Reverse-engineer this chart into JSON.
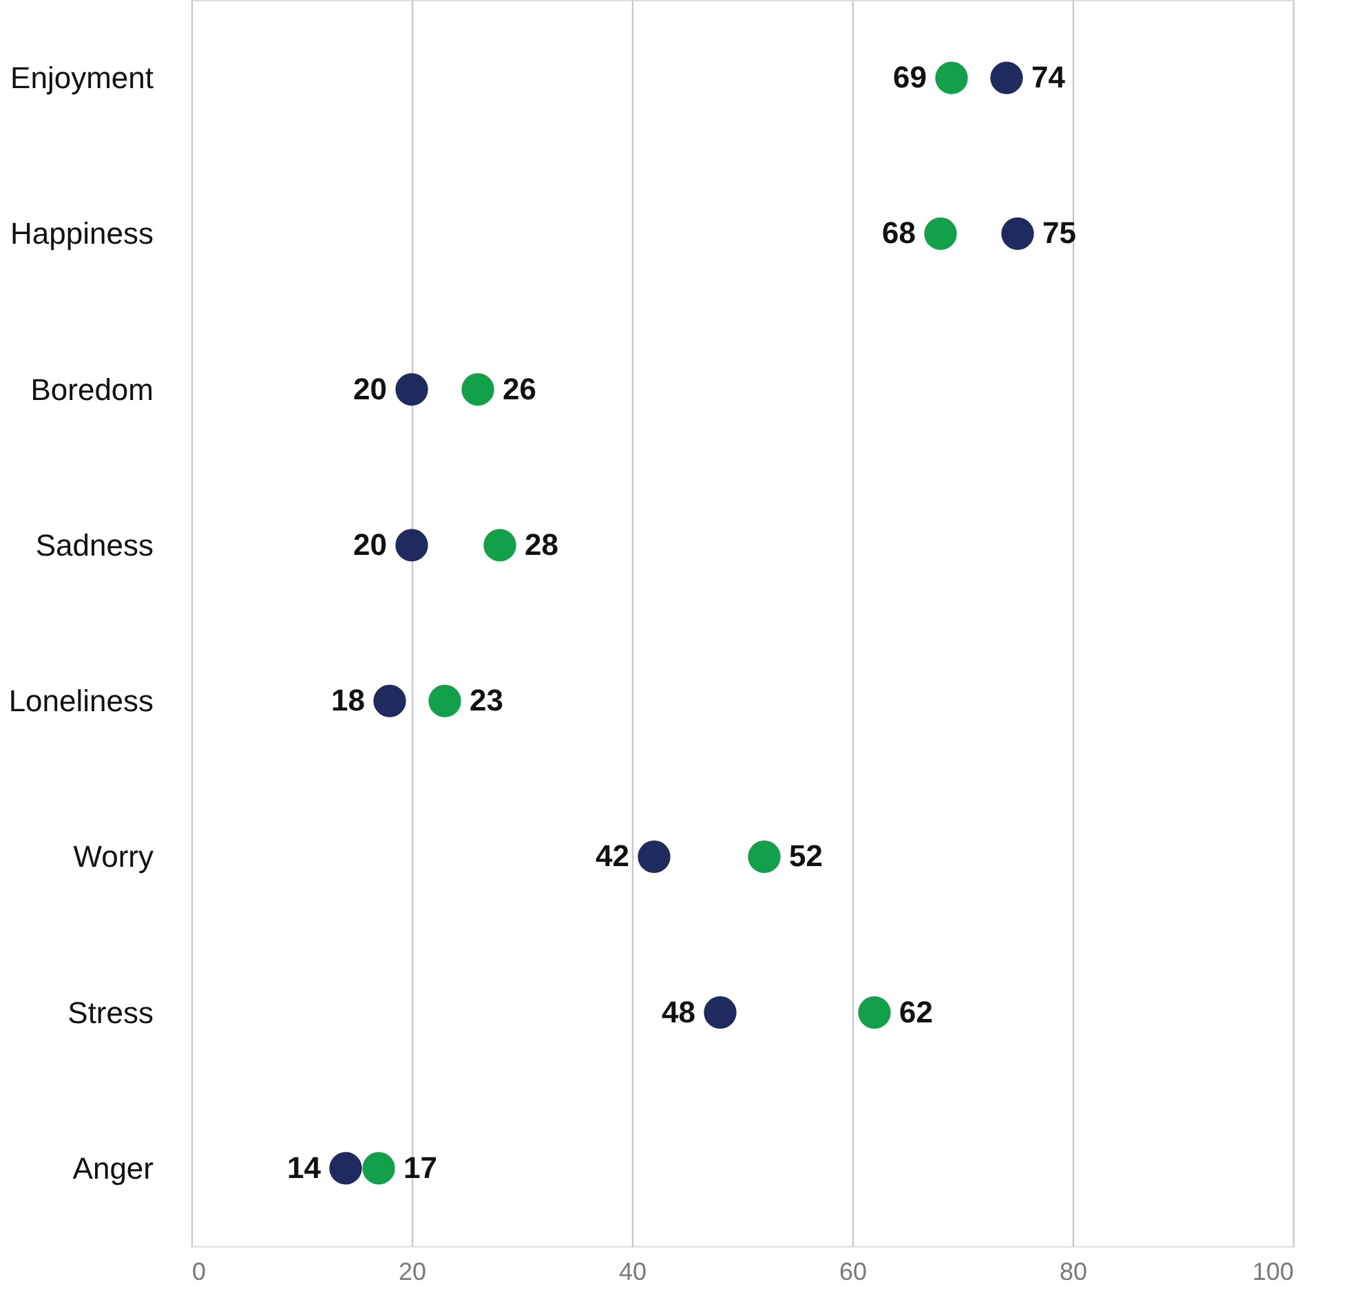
{
  "chart_data": {
    "type": "scatter",
    "orientation": "horizontal",
    "categories": [
      "Enjoyment",
      "Happiness",
      "Boredom",
      "Sadness",
      "Loneliness",
      "Worry",
      "Stress",
      "Anger"
    ],
    "series": [
      {
        "color": "#1f2a5e",
        "values": [
          74,
          75,
          20,
          20,
          18,
          42,
          48,
          14
        ]
      },
      {
        "color": "#13a04b",
        "values": [
          69,
          68,
          26,
          28,
          23,
          52,
          62,
          17
        ]
      }
    ],
    "xlim": [
      0,
      100
    ],
    "xticks": [
      0,
      20,
      40,
      60,
      80,
      100
    ],
    "grid": "x",
    "data_labels": true,
    "marker": "circle"
  }
}
